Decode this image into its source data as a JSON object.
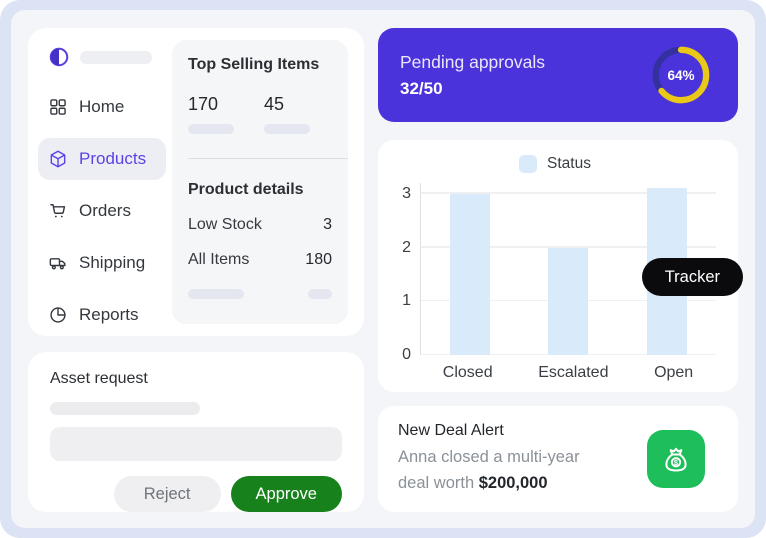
{
  "page": {
    "bg": "#dce3f4",
    "panel_bg": "#f4f5f8"
  },
  "sidebar": {
    "logo_icon": "contrast-circle-icon",
    "items": [
      {
        "label": "Home",
        "icon": "grid-icon",
        "active": false
      },
      {
        "label": "Products",
        "icon": "box-icon",
        "active": true
      },
      {
        "label": "Orders",
        "icon": "cart-icon",
        "active": false
      },
      {
        "label": "Shipping",
        "icon": "truck-icon",
        "active": false
      },
      {
        "label": "Reports",
        "icon": "pie-chart-icon",
        "active": false
      }
    ]
  },
  "top_selling": {
    "title": "Top Selling Items",
    "stat1": "170",
    "stat2": "45",
    "details_title": "Product details",
    "rows": [
      {
        "label": "Low Stock",
        "value": "3"
      },
      {
        "label": "All Items",
        "value": "180"
      }
    ]
  },
  "asset_request": {
    "title": "Asset request",
    "reject_label": "Reject",
    "approve_label": "Approve",
    "approve_color": "#17821b"
  },
  "pending_approvals": {
    "title": "Pending approvals",
    "count": "32/50",
    "percent": 64,
    "percent_label": "64%",
    "card_color": "#4b33db",
    "ring_color": "#e9c81a",
    "track_color": "#34309f"
  },
  "tracker_badge": {
    "label": "Tracker",
    "bg": "#0b0b0d"
  },
  "new_deal": {
    "title": "New Deal Alert",
    "desc_line1": "Anna closed a multi-year",
    "desc_line2": "deal worth ",
    "amount": "$200,000",
    "icon": "money-bag-icon",
    "icon_bg": "#1ebe5b"
  },
  "chart_data": {
    "type": "bar",
    "categories": [
      "Closed",
      "Escalated",
      "Open"
    ],
    "series": [
      {
        "name": "Status",
        "values": [
          3,
          2,
          3.1
        ]
      }
    ],
    "title": "",
    "xlabel": "",
    "ylabel": "",
    "ylim": [
      0,
      3.2
    ],
    "yticks": [
      0,
      1,
      2,
      3
    ],
    "bar_color": "#d9eafb",
    "grid": true,
    "legend_position": "top"
  }
}
